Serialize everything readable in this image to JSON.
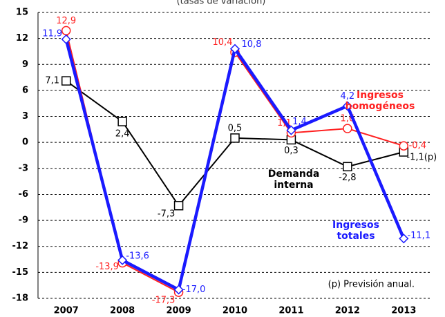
{
  "chart_data": {
    "type": "line",
    "title": "(tasas de variación)",
    "categories": [
      "2007",
      "2008",
      "2009",
      "2010",
      "2011",
      "2012",
      "2013"
    ],
    "series": [
      {
        "name": "Ingresos homogéneos",
        "color": "#ff2020",
        "marker": "circle",
        "values": [
          12.9,
          -13.9,
          -17.3,
          10.4,
          1.1,
          1.6,
          -0.4
        ],
        "value_labels": [
          "12,9",
          "-13,9",
          "-17,3",
          "10,4",
          "1,1",
          "1,6",
          "-0,4"
        ]
      },
      {
        "name": "Demanda interna",
        "color": "#000000",
        "marker": "square",
        "values": [
          7.1,
          2.4,
          -7.3,
          0.5,
          0.3,
          -2.8,
          -1.1
        ],
        "value_labels": [
          "7,1",
          "2,4",
          "-7,3",
          "0,5",
          "0,3",
          "-2,8",
          "-1,1(p)"
        ]
      },
      {
        "name": "Ingresos totales",
        "color": "#1a1aff",
        "marker": "diamond",
        "values": [
          11.9,
          -13.6,
          -17.0,
          10.8,
          1.4,
          4.2,
          -11.1
        ],
        "value_labels": [
          "11,9",
          "-13,6",
          "-17,0",
          "10,8",
          "1,4",
          "4,2",
          "-11,1"
        ]
      }
    ],
    "annotations": [
      "(p) Previsión anual."
    ],
    "ylim": [
      -18,
      15
    ],
    "yticks": [
      -18,
      -15,
      -12,
      -9,
      -6,
      -3,
      0,
      3,
      6,
      9,
      12,
      15
    ],
    "grid": true
  }
}
